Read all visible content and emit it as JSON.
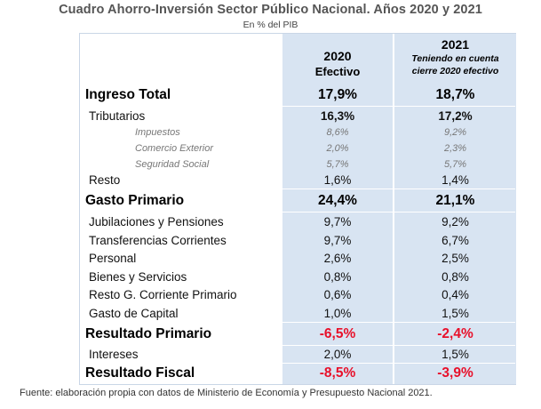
{
  "title": "Cuadro Ahorro-Inversión Sector Público Nacional. Años 2020 y 2021",
  "subtitle": "En % del PIB",
  "columns": {
    "c1": {
      "year": "2020",
      "sub": "Efectivo"
    },
    "c2": {
      "year": "2021",
      "note1": "Teniendo en cuenta",
      "note2": "cierre 2020 efectivo"
    }
  },
  "rows": [
    {
      "label": "Ingreso Total",
      "v2020": "17,9%",
      "v2021": "18,7%"
    },
    {
      "label": "Tributarios",
      "v2020": "16,3%",
      "v2021": "17,2%"
    },
    {
      "label": "Impuestos",
      "v2020": "8,6%",
      "v2021": "9,2%"
    },
    {
      "label": "Comercio Exterior",
      "v2020": "2,0%",
      "v2021": "2,3%"
    },
    {
      "label": "Seguridad Social",
      "v2020": "5,7%",
      "v2021": "5,7%"
    },
    {
      "label": "Resto",
      "v2020": "1,6%",
      "v2021": "1,4%"
    },
    {
      "label": "Gasto Primario",
      "v2020": "24,4%",
      "v2021": "21,1%"
    },
    {
      "label": "Jubilaciones y Pensiones",
      "v2020": "9,7%",
      "v2021": "9,2%"
    },
    {
      "label": "Transferencias Corrientes",
      "v2020": "9,7%",
      "v2021": "6,7%"
    },
    {
      "label": "Personal",
      "v2020": "2,6%",
      "v2021": "2,5%"
    },
    {
      "label": "Bienes y Servicios",
      "v2020": "0,8%",
      "v2021": "0,8%"
    },
    {
      "label": "Resto G. Corriente Primario",
      "v2020": "0,6%",
      "v2021": "0,4%"
    },
    {
      "label": "Gasto de Capital",
      "v2020": "1,0%",
      "v2021": "1,5%"
    },
    {
      "label": "Resultado Primario",
      "v2020": "-6,5%",
      "v2021": "-2,4%"
    },
    {
      "label": "Intereses",
      "v2020": "2,0%",
      "v2021": "1,5%"
    },
    {
      "label": "Resultado Fiscal",
      "v2020": "-8,5%",
      "v2021": "-3,9%"
    }
  ],
  "colors": {
    "column_bg": "#d8e4f2",
    "negative": "#e8102a",
    "title": "#555555"
  },
  "source": "Fuente: elaboración propia con datos de Ministerio de Economía y Presupuesto Nacional 2021."
}
